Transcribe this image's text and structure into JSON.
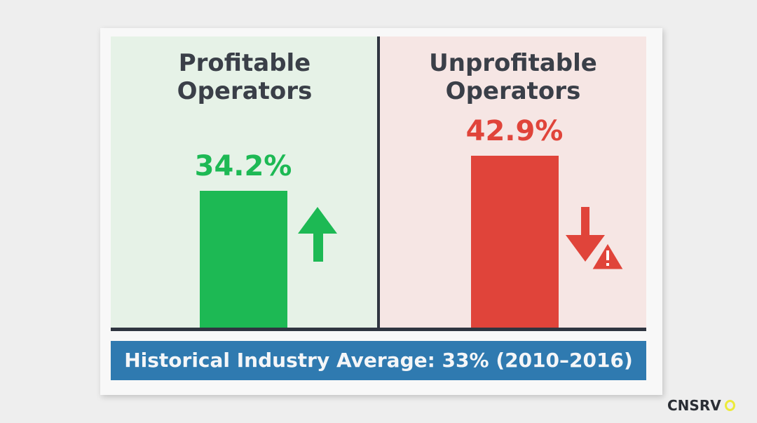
{
  "chart_data": {
    "type": "bar",
    "categories": [
      "Profitable Operators",
      "Unprofitable Operators"
    ],
    "values": [
      34.2,
      42.9
    ],
    "value_labels": [
      "34.2%",
      "42.9%"
    ],
    "colors": [
      "#1db954",
      "#e0443a"
    ],
    "ylim": [
      0,
      50
    ],
    "grid": false,
    "axes_shown": false
  },
  "panels": {
    "left": {
      "title_line1": "Profitable",
      "title_line2": "Operators",
      "icon": "arrow-up-icon",
      "color": "#1db954"
    },
    "right": {
      "title_line1": "Unprofitable",
      "title_line2": "Operators",
      "icon": "arrow-down-warning-icon",
      "color": "#e0443a"
    }
  },
  "banner": {
    "text": "Historical Industry Average: 33% (2010–2016)",
    "color": "#2f7ab0"
  },
  "logo": {
    "text": "CNSRV"
  }
}
